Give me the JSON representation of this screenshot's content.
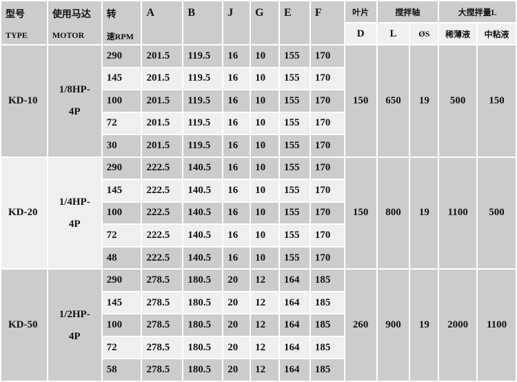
{
  "header": {
    "type_cn": "型号",
    "type_en": "TYPE",
    "motor_cn": "使用马达",
    "motor_en": "MOTOR",
    "rpm_cn": "转",
    "rpm_en": "速RPM",
    "dims": [
      "A",
      "B",
      "J",
      "G",
      "E",
      "F"
    ],
    "blade": "叶片",
    "blade_sub": "D",
    "shaft": "搅拌轴",
    "shaft_subs": [
      "L",
      "ØS"
    ],
    "capacity": "大搅拌量L",
    "capacity_subs": [
      "稀薄液",
      "中粘液"
    ]
  },
  "groups": [
    {
      "type": "KD-10",
      "motor": [
        "1/8HP-",
        "4P"
      ],
      "D": "150",
      "L": "650",
      "S": "19",
      "thin": "500",
      "medium": "150",
      "rows": [
        [
          "290",
          "201.5",
          "119.5",
          "16",
          "10",
          "155",
          "170"
        ],
        [
          "145",
          "201.5",
          "119.5",
          "16",
          "10",
          "155",
          "170"
        ],
        [
          "100",
          "201.5",
          "119.5",
          "16",
          "10",
          "155",
          "170"
        ],
        [
          "72",
          "201.5",
          "119.5",
          "16",
          "10",
          "155",
          "170"
        ],
        [
          "30",
          "201.5",
          "119.5",
          "16",
          "10",
          "155",
          "170"
        ]
      ]
    },
    {
      "type": "KD-20",
      "motor": [
        "1/4HP-",
        "4P"
      ],
      "D": "150",
      "L": "800",
      "S": "19",
      "thin": "1100",
      "medium": "500",
      "rows": [
        [
          "290",
          "222.5",
          "140.5",
          "16",
          "10",
          "155",
          "170"
        ],
        [
          "145",
          "222.5",
          "140.5",
          "16",
          "10",
          "155",
          "170"
        ],
        [
          "100",
          "222.5",
          "140.5",
          "16",
          "10",
          "155",
          "170"
        ],
        [
          "72",
          "222.5",
          "140.5",
          "16",
          "10",
          "155",
          "170"
        ],
        [
          "48",
          "222.5",
          "140.5",
          "16",
          "10",
          "155",
          "170"
        ]
      ]
    },
    {
      "type": "KD-50",
      "motor": [
        "1/2HP-",
        "4P"
      ],
      "D": "260",
      "L": "900",
      "S": "19",
      "thin": "2000",
      "medium": "1100",
      "rows": [
        [
          "290",
          "278.5",
          "180.5",
          "20",
          "12",
          "164",
          "185"
        ],
        [
          "145",
          "278.5",
          "180.5",
          "20",
          "12",
          "164",
          "185"
        ],
        [
          "100",
          "278.5",
          "180.5",
          "20",
          "12",
          "164",
          "185"
        ],
        [
          "72",
          "278.5",
          "180.5",
          "20",
          "12",
          "164",
          "185"
        ],
        [
          "58",
          "278.5",
          "180.5",
          "20",
          "12",
          "164",
          "185"
        ]
      ]
    }
  ]
}
